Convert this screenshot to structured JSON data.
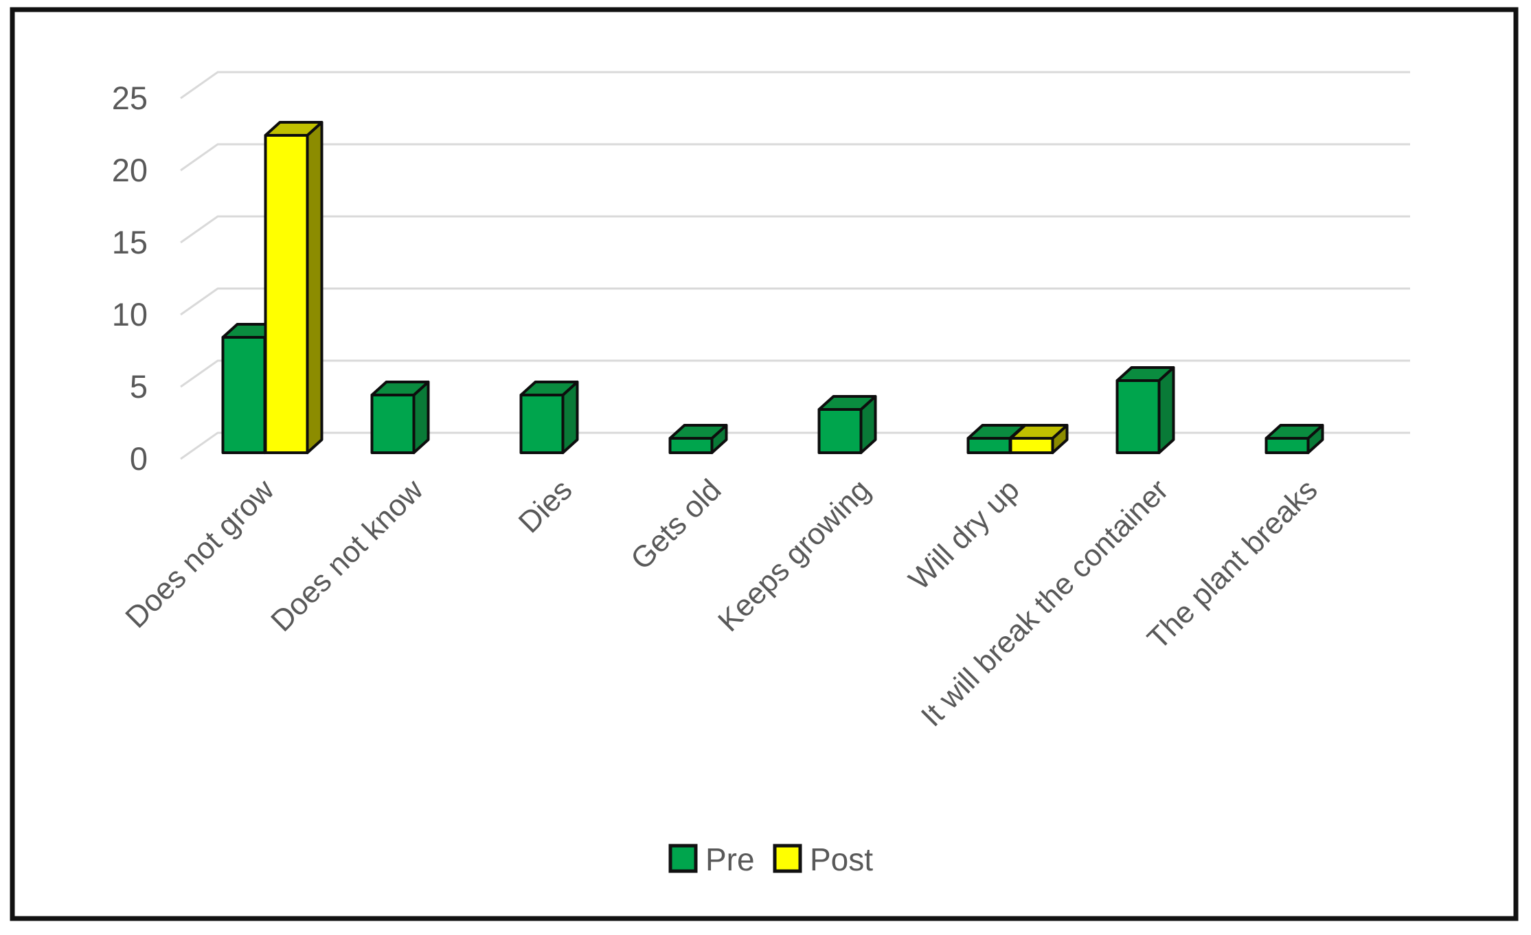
{
  "chart_data": {
    "type": "bar",
    "subtype": "3d-clustered-column",
    "title": "",
    "xlabel": "",
    "ylabel": "",
    "categories": [
      "Does not grow",
      "Does not know",
      "Dies",
      "Gets old",
      "Keeps growing",
      "Will dry up",
      "It will break the container",
      "The plant breaks"
    ],
    "series": [
      {
        "name": "Pre",
        "color": "#00A54D",
        "values": [
          8,
          4,
          4,
          1,
          3,
          1,
          5,
          1
        ]
      },
      {
        "name": "Post",
        "color": "#FFFF00",
        "values": [
          22,
          0,
          0,
          0,
          0,
          1,
          0,
          0
        ]
      }
    ],
    "ylim": [
      0,
      25
    ],
    "yticks": [
      0,
      5,
      10,
      15,
      20,
      25
    ],
    "grid": true,
    "gridlines_3d": true,
    "legend_position": "bottom-center",
    "category_label_rotation_deg": -45
  },
  "colors": {
    "pre": {
      "front": "#00A54D",
      "top": "#0A8C3F",
      "side": "#097A37"
    },
    "post": {
      "front": "#FFFF00",
      "top": "#C0C000",
      "side": "#8C8C00"
    },
    "gridline": "#D9D9D9",
    "axis_text": "#595959",
    "bar_outline": "#0D0D0D",
    "frame": "#111111",
    "background": "#FFFFFF"
  }
}
